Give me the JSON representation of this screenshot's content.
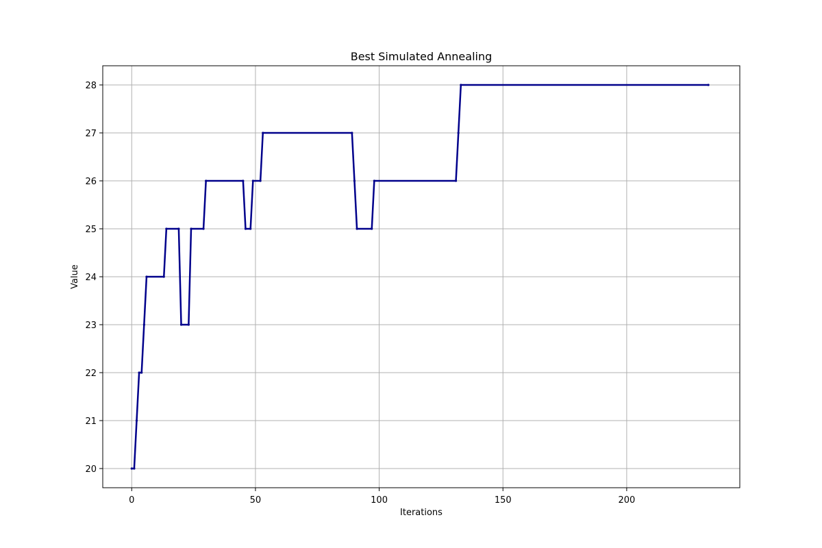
{
  "chart_data": {
    "type": "line",
    "title": "Best Simulated Annealing",
    "xlabel": "Iterations",
    "ylabel": "Value",
    "xlim": [
      -11.7,
      245.7
    ],
    "ylim": [
      19.6,
      28.4
    ],
    "xticks": [
      0,
      50,
      100,
      150,
      200
    ],
    "yticks": [
      20,
      21,
      22,
      23,
      24,
      25,
      26,
      27,
      28
    ],
    "grid": true,
    "legend": "none",
    "series": [
      {
        "color": "#00008b",
        "marker": "dot",
        "points": [
          [
            0,
            20
          ],
          [
            1,
            20
          ],
          [
            2,
            21
          ],
          [
            3,
            22
          ],
          [
            4,
            22
          ],
          [
            5,
            23
          ],
          [
            6,
            24
          ],
          [
            13,
            24
          ],
          [
            14,
            25
          ],
          [
            19,
            25
          ],
          [
            20,
            23
          ],
          [
            23,
            23
          ],
          [
            24,
            25
          ],
          [
            29,
            25
          ],
          [
            30,
            26
          ],
          [
            45,
            26
          ],
          [
            46,
            25
          ],
          [
            48,
            25
          ],
          [
            49,
            26
          ],
          [
            52,
            26
          ],
          [
            53,
            27
          ],
          [
            89,
            27
          ],
          [
            90,
            26
          ],
          [
            91,
            25
          ],
          [
            97,
            25
          ],
          [
            98,
            26
          ],
          [
            131,
            26
          ],
          [
            132,
            27
          ],
          [
            133,
            28
          ],
          [
            233,
            28
          ]
        ]
      }
    ]
  }
}
